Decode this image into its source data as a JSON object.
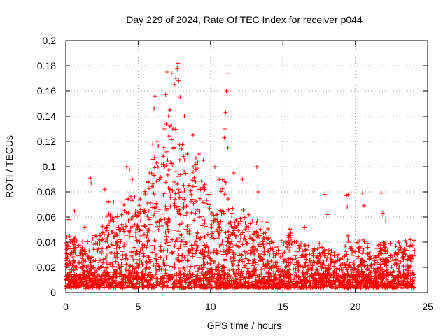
{
  "chart_data": {
    "type": "scatter",
    "title": "Day 229 of 2024, Rate Of TEC Index for receiver p044",
    "xlabel": "GPS time / hours",
    "ylabel": "ROTI / TECUs",
    "xlim": [
      0,
      25
    ],
    "ylim": [
      0,
      0.2
    ],
    "x_ticks": [
      "0",
      "5",
      "10",
      "15",
      "20",
      "25"
    ],
    "y_ticks": [
      "0",
      "0.02",
      "0.04",
      "0.06",
      "0.08",
      "0.1",
      "0.12",
      "0.14",
      "0.16",
      "0.18",
      "0.2"
    ],
    "grid": true,
    "marker": "+",
    "series_color": "#ff0000",
    "series": [
      {
        "name": "ROTI",
        "envelope": [
          [
            0.0,
            0.035
          ],
          [
            0.5,
            0.04
          ],
          [
            1.0,
            0.035
          ],
          [
            1.5,
            0.03
          ],
          [
            2.0,
            0.035
          ],
          [
            2.5,
            0.045
          ],
          [
            3.0,
            0.06
          ],
          [
            3.5,
            0.05
          ],
          [
            4.0,
            0.06
          ],
          [
            4.5,
            0.075
          ],
          [
            5.0,
            0.065
          ],
          [
            5.5,
            0.07
          ],
          [
            6.0,
            0.09
          ],
          [
            6.5,
            0.1
          ],
          [
            7.0,
            0.11
          ],
          [
            7.5,
            0.12
          ],
          [
            8.0,
            0.1
          ],
          [
            8.5,
            0.085
          ],
          [
            9.0,
            0.09
          ],
          [
            9.5,
            0.075
          ],
          [
            10.0,
            0.065
          ],
          [
            10.5,
            0.06
          ],
          [
            11.0,
            0.08
          ],
          [
            11.5,
            0.06
          ],
          [
            12.0,
            0.055
          ],
          [
            12.5,
            0.06
          ],
          [
            13.0,
            0.045
          ],
          [
            13.5,
            0.05
          ],
          [
            14.0,
            0.04
          ],
          [
            14.5,
            0.035
          ],
          [
            15.0,
            0.035
          ],
          [
            15.5,
            0.038
          ],
          [
            16.0,
            0.035
          ],
          [
            16.5,
            0.03
          ],
          [
            17.0,
            0.03
          ],
          [
            17.5,
            0.035
          ],
          [
            18.0,
            0.03
          ],
          [
            18.5,
            0.028
          ],
          [
            19.0,
            0.025
          ],
          [
            19.5,
            0.035
          ],
          [
            20.0,
            0.03
          ],
          [
            20.5,
            0.035
          ],
          [
            21.0,
            0.03
          ],
          [
            21.5,
            0.028
          ],
          [
            22.0,
            0.035
          ],
          [
            22.5,
            0.03
          ],
          [
            23.0,
            0.03
          ],
          [
            23.5,
            0.035
          ],
          [
            24.0,
            0.032
          ]
        ],
        "outliers": [
          [
            0.2,
            0.058
          ],
          [
            0.6,
            0.065
          ],
          [
            1.3,
            0.052
          ],
          [
            1.7,
            0.091
          ],
          [
            1.75,
            0.087
          ],
          [
            2.7,
            0.082
          ],
          [
            3.3,
            0.072
          ],
          [
            4.2,
            0.1
          ],
          [
            4.4,
            0.098
          ],
          [
            4.6,
            0.09
          ],
          [
            5.8,
            0.095
          ],
          [
            6.0,
            0.118
          ],
          [
            6.1,
            0.146
          ],
          [
            6.15,
            0.156
          ],
          [
            6.3,
            0.12
          ],
          [
            6.8,
            0.13
          ],
          [
            6.9,
            0.157
          ],
          [
            7.0,
            0.175
          ],
          [
            7.1,
            0.14
          ],
          [
            7.2,
            0.145
          ],
          [
            7.3,
            0.174
          ],
          [
            7.4,
            0.13
          ],
          [
            7.5,
            0.165
          ],
          [
            7.6,
            0.17
          ],
          [
            7.7,
            0.178
          ],
          [
            7.75,
            0.182
          ],
          [
            7.8,
            0.168
          ],
          [
            7.9,
            0.155
          ],
          [
            8.2,
            0.14
          ],
          [
            8.4,
            0.11
          ],
          [
            8.8,
            0.125
          ],
          [
            9.2,
            0.11
          ],
          [
            9.5,
            0.105
          ],
          [
            10.3,
            0.1
          ],
          [
            10.6,
            0.09
          ],
          [
            10.95,
            0.123
          ],
          [
            11.0,
            0.13
          ],
          [
            11.05,
            0.143
          ],
          [
            11.1,
            0.16
          ],
          [
            11.15,
            0.174
          ],
          [
            11.2,
            0.115
          ],
          [
            11.6,
            0.095
          ],
          [
            12.2,
            0.09
          ],
          [
            13.2,
            0.1
          ],
          [
            13.3,
            0.08
          ],
          [
            13.9,
            0.056
          ],
          [
            15.5,
            0.05
          ],
          [
            16.5,
            0.052
          ],
          [
            17.9,
            0.078
          ],
          [
            18.1,
            0.062
          ],
          [
            19.4,
            0.077
          ],
          [
            19.5,
            0.078
          ],
          [
            19.45,
            0.068
          ],
          [
            20.5,
            0.079
          ],
          [
            20.6,
            0.069
          ],
          [
            21.8,
            0.079
          ],
          [
            21.9,
            0.063
          ],
          [
            22.1,
            0.057
          ],
          [
            23.0,
            0.04
          ],
          [
            23.8,
            0.042
          ]
        ]
      }
    ]
  }
}
